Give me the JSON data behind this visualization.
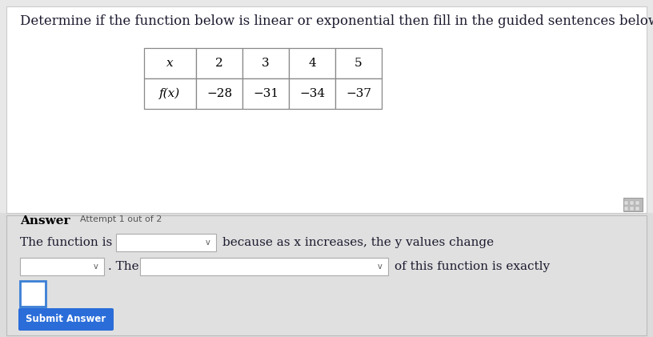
{
  "title": "Determine if the function below is linear or exponential then fill in the guided sentences below.",
  "table_x_labels": [
    "x",
    "2",
    "3",
    "4",
    "5"
  ],
  "table_fx_labels": [
    "f(x)",
    "−28",
    "−31",
    "−34",
    "−37"
  ],
  "answer_label": "Answer",
  "attempt_label": "Attempt 1 out of 2",
  "line1_prefix": "The function is",
  "line1_suffix": "because as x increases, the y values change",
  "line2_mid": ". The",
  "line2_suffix": "of this function is exactly",
  "top_bg": "#dcdcdc",
  "answer_bg": "#d8d8d8",
  "white": "#ffffff",
  "button_color": "#2a6dd9",
  "button_text": "Submit Answer",
  "title_fontsize": 12,
  "body_fontsize": 11,
  "small_fontsize": 8
}
